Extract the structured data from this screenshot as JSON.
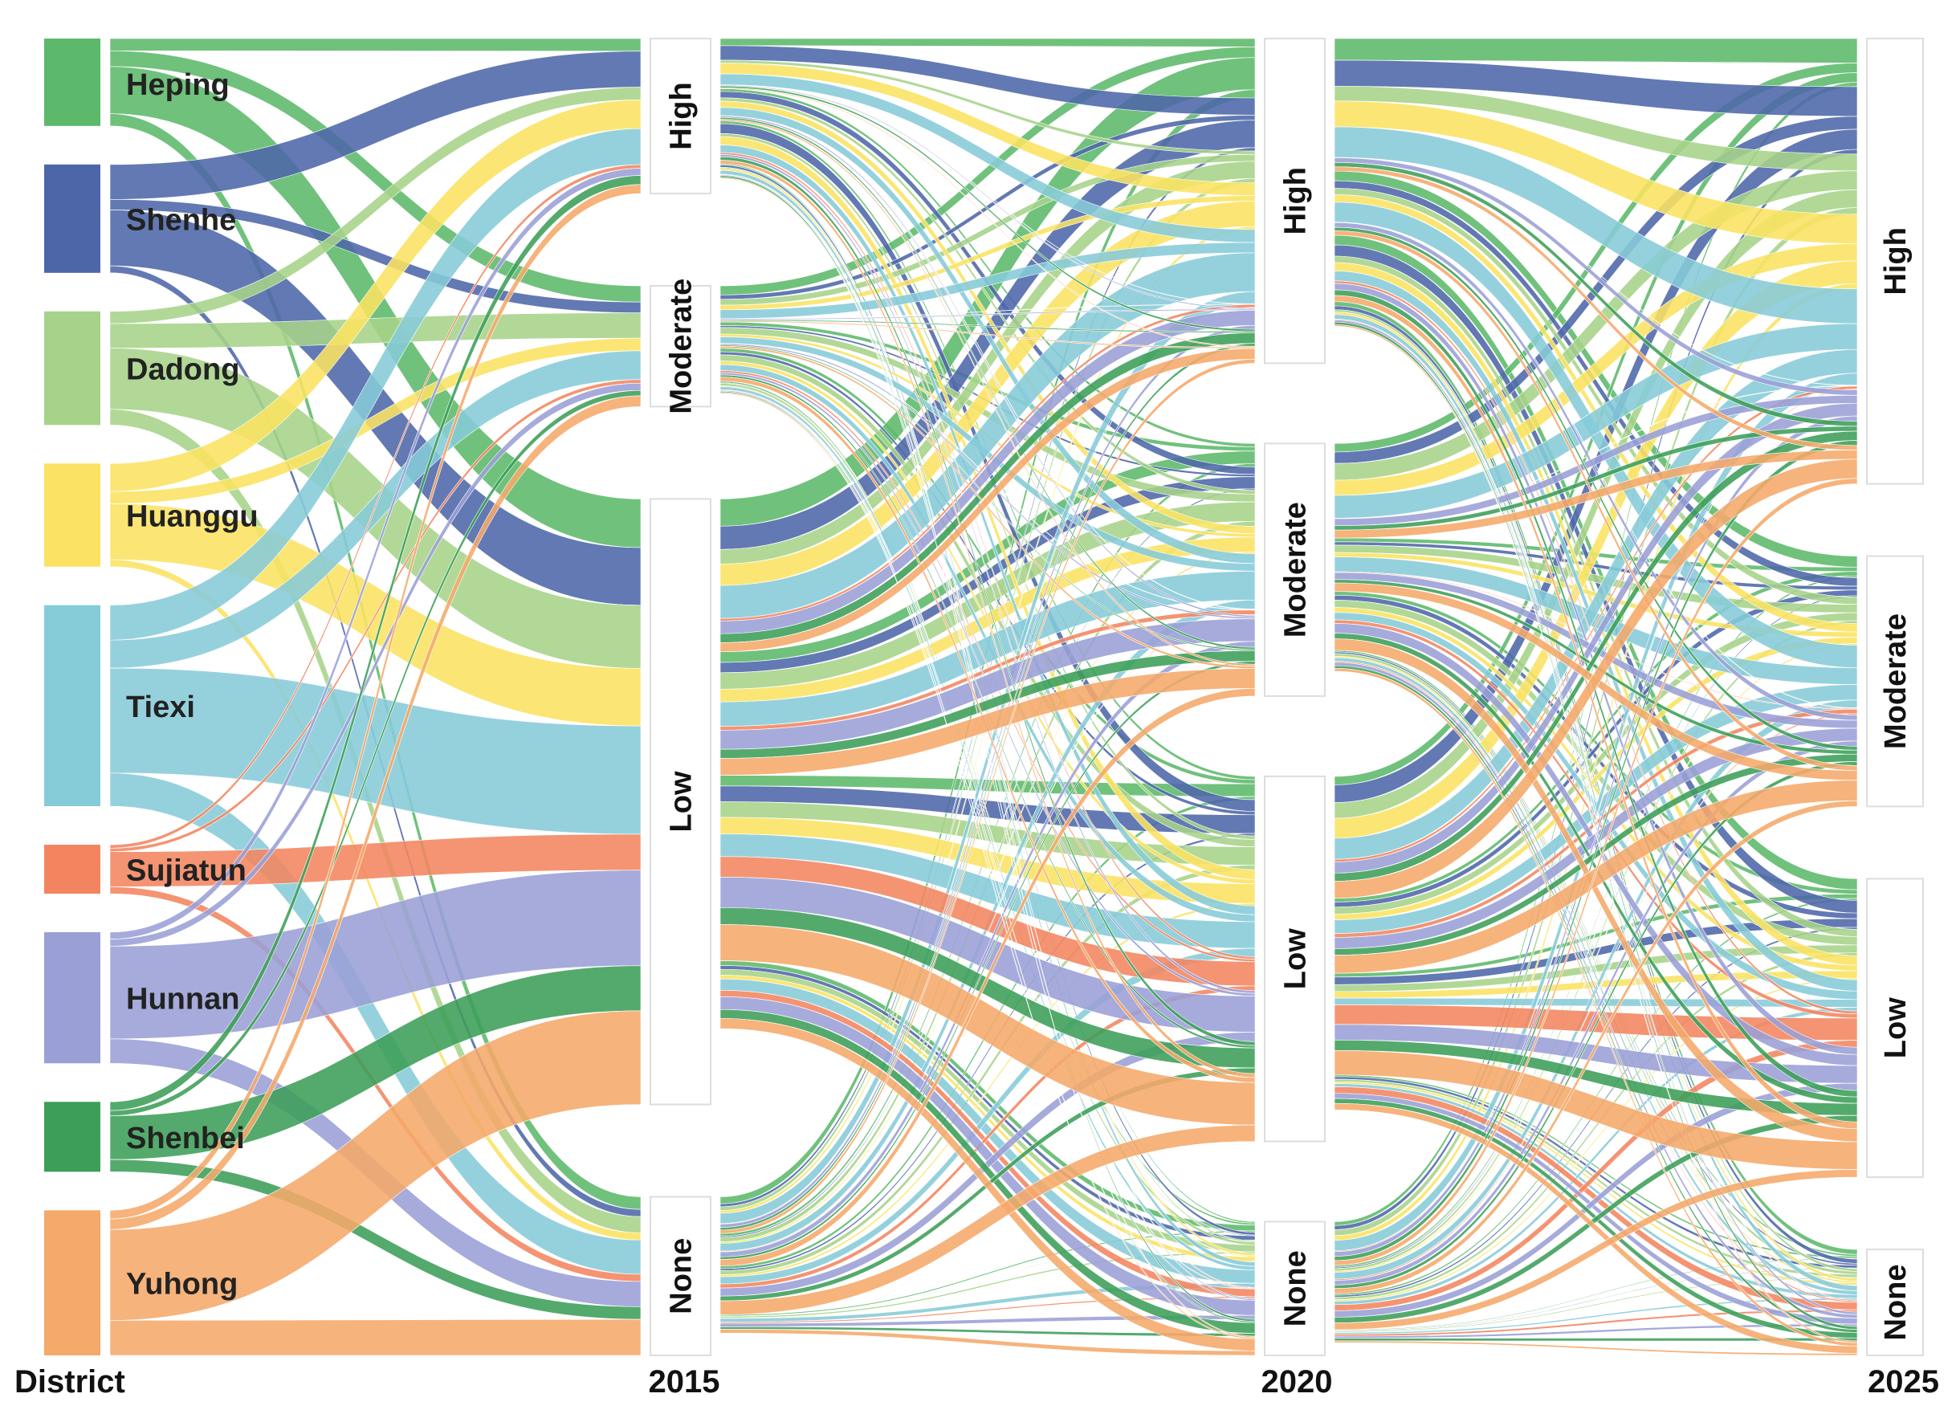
{
  "chart_data": {
    "type": "alluvial",
    "axes": [
      "District",
      "2015",
      "2020",
      "2025"
    ],
    "districts": [
      {
        "name": "Heping",
        "color": "#5cb86a"
      },
      {
        "name": "Shenhe",
        "color": "#4d66a8"
      },
      {
        "name": "Dadong",
        "color": "#a6d389"
      },
      {
        "name": "Huanggu",
        "color": "#fbe262"
      },
      {
        "name": "Tiexi",
        "color": "#86cbd8"
      },
      {
        "name": "Sujiatun",
        "color": "#f28560"
      },
      {
        "name": "Hunnan",
        "color": "#9a9fd6"
      },
      {
        "name": "Shenbei",
        "color": "#3c9e58"
      },
      {
        "name": "Yuhong",
        "color": "#f5a96a"
      }
    ],
    "levels": [
      "High",
      "Moderate",
      "Low",
      "None"
    ],
    "flows_2015": [
      {
        "district": "Heping",
        "High": 0.7,
        "Moderate": 0.9,
        "Low": 2.7,
        "None": 0.7
      },
      {
        "district": "Shenhe",
        "High": 2.0,
        "Moderate": 0.6,
        "Low": 3.2,
        "None": 0.4
      },
      {
        "district": "Dadong",
        "High": 0.7,
        "Moderate": 1.4,
        "Low": 3.5,
        "None": 0.9
      },
      {
        "district": "Huanggu",
        "High": 1.6,
        "Moderate": 0.7,
        "Low": 3.2,
        "None": 0.4
      },
      {
        "district": "Tiexi",
        "High": 2.0,
        "Moderate": 1.6,
        "Low": 6.0,
        "None": 1.9
      },
      {
        "district": "Sujiatun",
        "High": 0.2,
        "Moderate": 0.2,
        "Low": 2.0,
        "None": 0.4
      },
      {
        "district": "Hunnan",
        "High": 0.4,
        "Moderate": 0.4,
        "Low": 5.3,
        "None": 1.4
      },
      {
        "district": "Shenbei",
        "High": 0.5,
        "Moderate": 0.3,
        "Low": 2.5,
        "None": 0.7
      },
      {
        "district": "Yuhong",
        "High": 0.5,
        "Moderate": 0.6,
        "Low": 5.2,
        "None": 2.0
      }
    ],
    "flows_2020": [
      {
        "district": "Heping",
        "High": 2.8,
        "Moderate": 1.1,
        "Low": 1.1,
        "None": 0.5
      },
      {
        "district": "Shenhe",
        "High": 2.5,
        "Moderate": 1.1,
        "Low": 1.7,
        "None": 0.4
      },
      {
        "district": "Dadong",
        "High": 1.5,
        "Moderate": 1.7,
        "Low": 1.6,
        "None": 0.6
      },
      {
        "district": "Huanggu",
        "High": 2.2,
        "Moderate": 1.3,
        "Low": 1.7,
        "None": 0.4
      },
      {
        "district": "Tiexi",
        "High": 3.5,
        "Moderate": 2.6,
        "Low": 2.4,
        "None": 1.2
      },
      {
        "district": "Sujiatun",
        "High": 0.2,
        "Moderate": 0.3,
        "Low": 1.6,
        "None": 0.5
      },
      {
        "district": "Hunnan",
        "High": 1.0,
        "Moderate": 1.5,
        "Low": 2.4,
        "None": 1.0
      },
      {
        "district": "Shenbei",
        "High": 0.8,
        "Moderate": 0.8,
        "Low": 1.5,
        "None": 0.8
      },
      {
        "district": "Yuhong",
        "High": 0.8,
        "Moderate": 1.5,
        "Low": 3.2,
        "None": 0.9
      }
    ],
    "flows_2025": [
      {
        "district": "Heping",
        "High": 2.0,
        "Moderate": 0.9,
        "Low": 0.9,
        "None": 0.4
      },
      {
        "district": "Shenhe",
        "High": 2.8,
        "Moderate": 0.8,
        "Low": 1.2,
        "None": 0.4
      },
      {
        "district": "Dadong",
        "High": 2.5,
        "Moderate": 1.1,
        "Low": 1.1,
        "None": 0.4
      },
      {
        "district": "Huanggu",
        "High": 3.1,
        "Moderate": 0.9,
        "Low": 1.0,
        "None": 0.3
      },
      {
        "district": "Tiexi",
        "High": 4.0,
        "Moderate": 2.6,
        "Low": 1.3,
        "None": 0.6
      },
      {
        "district": "Sujiatun",
        "High": 0.2,
        "Moderate": 0.3,
        "Low": 1.5,
        "None": 0.5
      },
      {
        "district": "Hunnan",
        "High": 1.3,
        "Moderate": 1.3,
        "Low": 1.8,
        "None": 0.6
      },
      {
        "district": "Shenbei",
        "High": 1.0,
        "Moderate": 0.8,
        "Low": 1.3,
        "None": 0.6
      },
      {
        "district": "Yuhong",
        "High": 1.6,
        "Moderate": 1.7,
        "Low": 2.3,
        "None": 0.6
      }
    ]
  }
}
